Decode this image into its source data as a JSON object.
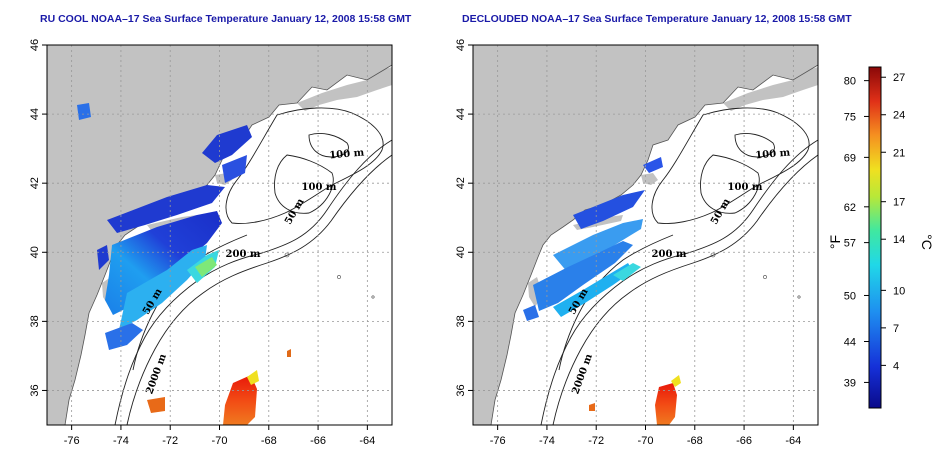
{
  "maps": [
    {
      "id": "left",
      "title": "RU COOL NOAA–17 Sea Surface Temperature January 12, 2008 15:58 GMT",
      "contour_labels": [
        "100 m",
        "100 m",
        "50 m",
        "200 m",
        "50 m",
        "2000 m"
      ]
    },
    {
      "id": "right",
      "title": "DECLOUDED NOAA–17 Sea Surface Temperature January 12, 2008 15:58 GMT",
      "contour_labels": [
        "100 m",
        "100 m",
        "50 m",
        "200 m",
        "50 m",
        "2000 m"
      ]
    }
  ],
  "axes": {
    "x_ticks": [
      "-76",
      "-74",
      "-72",
      "-70",
      "-68",
      "-66",
      "-64"
    ],
    "y_ticks": [
      "36",
      "38",
      "40",
      "42",
      "44",
      "46"
    ],
    "x_range": [
      -77,
      -63
    ],
    "y_range": [
      35,
      46
    ]
  },
  "colorbar": {
    "fahrenheit_ticks": [
      "80",
      "75",
      "69",
      "62",
      "57",
      "50",
      "44",
      "39"
    ],
    "celsius_ticks": [
      "27",
      "24",
      "21",
      "17",
      "14",
      "10",
      "7",
      "4"
    ],
    "fahrenheit_unit": "°F",
    "celsius_unit": "°C"
  },
  "colors": {
    "land": "#c2c2c2",
    "water": "#ffffff",
    "cold": "#1b35c9",
    "warm": "#d42020"
  }
}
